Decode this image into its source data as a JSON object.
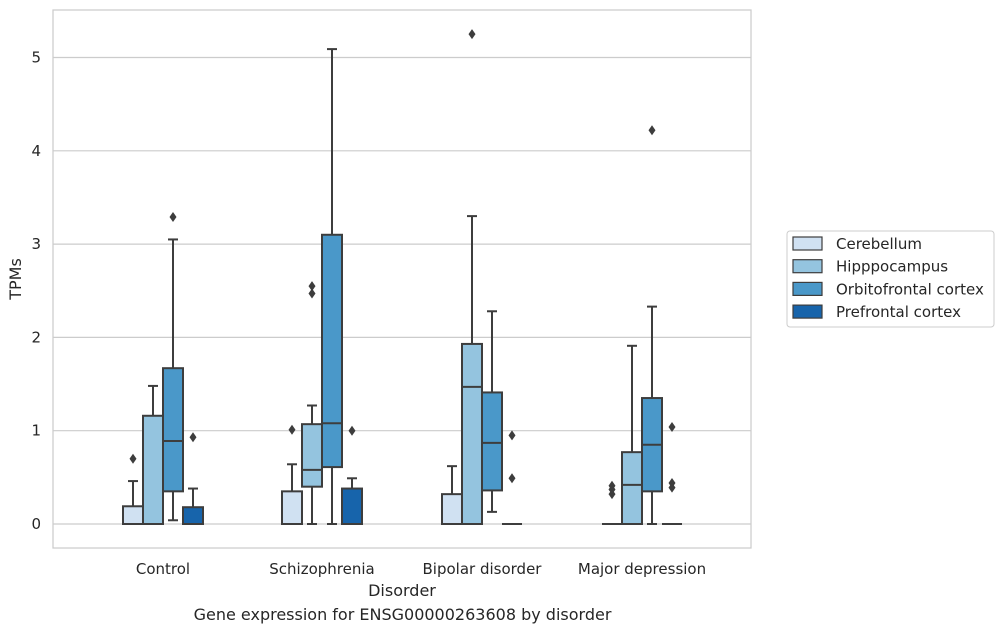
{
  "caption": "Gene expression for ENSG00000263608 by disorder",
  "chart_data": {
    "type": "box",
    "title": "",
    "xlabel": "Disorder",
    "ylabel": "TPMs",
    "ylim": [
      -0.25,
      5.5
    ],
    "yticks": [
      0,
      1,
      2,
      3,
      4,
      5
    ],
    "grid": "horizontal",
    "legend_position": "right",
    "categories": [
      "Control",
      "Schizophrenia",
      "Bipolar disorder",
      "Major depression"
    ],
    "series": [
      {
        "name": "Cerebellum",
        "color": "#d0e1f2",
        "boxes": [
          {
            "whislo": 0,
            "q1": 0,
            "med": 0,
            "q3": 0.19,
            "whishi": 0.46,
            "fliers": [
              0.7
            ]
          },
          {
            "whislo": 0,
            "q1": 0,
            "med": 0,
            "q3": 0.35,
            "whishi": 0.64,
            "fliers": [
              1.01
            ]
          },
          {
            "whislo": 0,
            "q1": 0,
            "med": 0,
            "q3": 0.32,
            "whishi": 0.62,
            "fliers": []
          },
          {
            "whislo": 0,
            "q1": 0,
            "med": 0,
            "q3": 0,
            "whishi": 0,
            "fliers": [
              0.32,
              0.37,
              0.41
            ]
          }
        ]
      },
      {
        "name": "Hipppocampus",
        "color": "#94c4df",
        "boxes": [
          {
            "whislo": 0,
            "q1": 0,
            "med": 0,
            "q3": 1.16,
            "whishi": 1.48,
            "fliers": []
          },
          {
            "whislo": 0,
            "q1": 0.4,
            "med": 0.58,
            "q3": 1.07,
            "whishi": 1.27,
            "fliers": [
              2.47,
              2.55
            ]
          },
          {
            "whislo": 0,
            "q1": 0,
            "med": 1.47,
            "q3": 1.93,
            "whishi": 3.3,
            "fliers": [
              5.25
            ]
          },
          {
            "whislo": 0,
            "q1": 0,
            "med": 0.42,
            "q3": 0.77,
            "whishi": 1.91,
            "fliers": []
          }
        ]
      },
      {
        "name": "Orbitofrontal cortex",
        "color": "#4a98c9",
        "boxes": [
          {
            "whislo": 0.04,
            "q1": 0.35,
            "med": 0.89,
            "q3": 1.67,
            "whishi": 3.05,
            "fliers": [
              3.29
            ]
          },
          {
            "whislo": 0,
            "q1": 0.61,
            "med": 1.08,
            "q3": 3.1,
            "whishi": 5.09,
            "fliers": []
          },
          {
            "whislo": 0.13,
            "q1": 0.36,
            "med": 0.87,
            "q3": 1.41,
            "whishi": 2.28,
            "fliers": []
          },
          {
            "whislo": 0,
            "q1": 0.35,
            "med": 0.85,
            "q3": 1.35,
            "whishi": 2.33,
            "fliers": [
              4.22
            ]
          }
        ]
      },
      {
        "name": "Prefrontal cortex",
        "color": "#1764ab",
        "boxes": [
          {
            "whislo": 0,
            "q1": 0,
            "med": 0,
            "q3": 0.18,
            "whishi": 0.38,
            "fliers": [
              0.93
            ]
          },
          {
            "whislo": 0,
            "q1": 0,
            "med": 0,
            "q3": 0.38,
            "whishi": 0.49,
            "fliers": [
              1.0
            ]
          },
          {
            "whislo": 0,
            "q1": 0,
            "med": 0,
            "q3": 0,
            "whishi": 0,
            "fliers": [
              0.49,
              0.95
            ]
          },
          {
            "whislo": 0,
            "q1": 0,
            "med": 0,
            "q3": 0,
            "whishi": 0,
            "fliers": [
              0.39,
              0.44,
              1.04
            ]
          }
        ]
      }
    ]
  }
}
